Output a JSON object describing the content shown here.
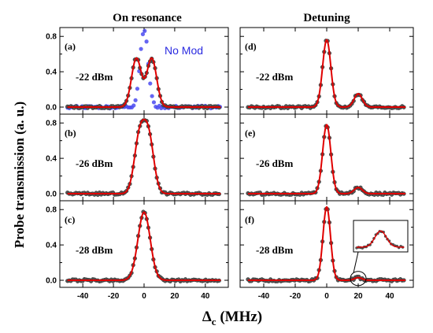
{
  "figure": {
    "column_titles": [
      "On resonance",
      "Detuning"
    ],
    "ylabel": "Probe transmission (a. u.)",
    "xlabel_main": "Δ",
    "xlabel_sub": "c",
    "xlabel_unit": " (MHz)"
  },
  "chart_data": {
    "type": "scatter",
    "xlim": [
      -55,
      55
    ],
    "ylim": [
      -0.08,
      0.9
    ],
    "x_ticks": [
      -40,
      -20,
      0,
      20,
      40
    ],
    "y_ticks": [
      0.0,
      0.4,
      0.8
    ],
    "y_tick_labels": [
      "0.0",
      "0.4",
      "0.8"
    ],
    "minor_y_ticks": [
      0.2,
      0.6
    ],
    "grid": false,
    "marker_color": "#555555",
    "fit_color": "#e00000",
    "nomod_color": "#4a4af0",
    "panels": [
      {
        "letter": "(a)",
        "power": "-22 dBm",
        "column": 0,
        "row": 0,
        "peaks": [
          {
            "center": -5,
            "amp": 0.55,
            "width": 3.2
          },
          {
            "center": 5,
            "amp": 0.55,
            "width": 3.2
          }
        ],
        "nomod": {
          "label": "No Mod",
          "center": 0,
          "amp": 0.88,
          "width": 2.6
        }
      },
      {
        "letter": "(b)",
        "power": "-26 dBm",
        "column": 0,
        "row": 1,
        "peaks": [
          {
            "center": -3,
            "amp": 0.62,
            "width": 3.4
          },
          {
            "center": 3,
            "amp": 0.62,
            "width": 3.4
          }
        ]
      },
      {
        "letter": "(c)",
        "power": "-28 dBm",
        "column": 0,
        "row": 2,
        "peaks": [
          {
            "center": 0,
            "amp": 0.77,
            "width": 4.0
          }
        ]
      },
      {
        "letter": "(d)",
        "power": "-22 dBm",
        "column": 1,
        "row": 0,
        "peaks": [
          {
            "center": 0,
            "amp": 0.76,
            "width": 2.6
          },
          {
            "center": 20,
            "amp": 0.15,
            "width": 2.6
          }
        ]
      },
      {
        "letter": "(e)",
        "power": "-26 dBm",
        "column": 1,
        "row": 1,
        "peaks": [
          {
            "center": 0,
            "amp": 0.78,
            "width": 2.6
          },
          {
            "center": 20,
            "amp": 0.07,
            "width": 2.6
          }
        ]
      },
      {
        "letter": "(f)",
        "power": "-28 dBm",
        "column": 1,
        "row": 2,
        "peaks": [
          {
            "center": 0,
            "amp": 0.83,
            "width": 2.4
          },
          {
            "center": 20,
            "amp": 0.03,
            "width": 2.4
          }
        ],
        "inset": true
      }
    ]
  }
}
